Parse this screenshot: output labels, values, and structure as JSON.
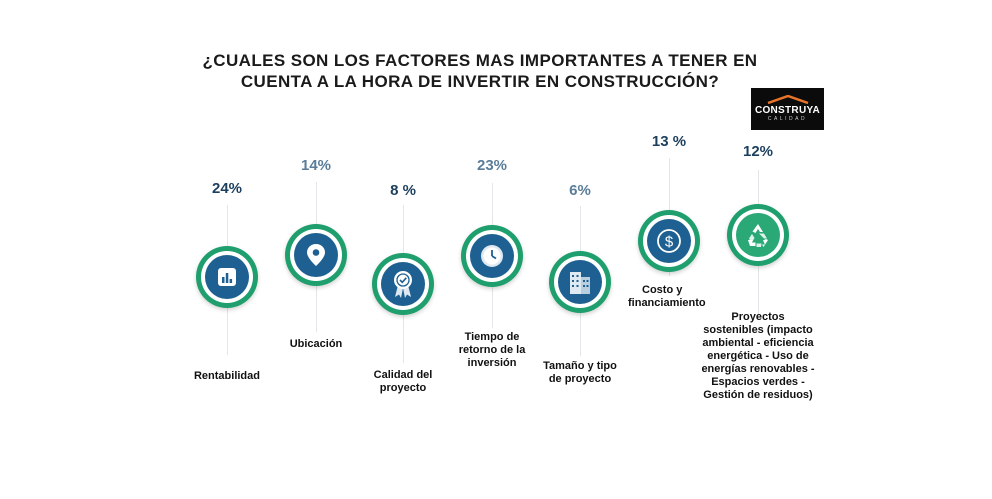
{
  "title_line1": "¿CUALES SON LOS FACTORES MAS IMPORTANTES A TENER EN",
  "title_line2": "CUENTA A LA HORA DE INVERTIR EN CONSTRUCCIÓN?",
  "logo": {
    "brand": "CONSTRUYA",
    "sub": "CALIDAD"
  },
  "colors": {
    "ring": "#1f9f6e",
    "core_blue": "#1e6091",
    "core_green": "#2aa876",
    "pct_dark": "#1d3f5e",
    "pct_light": "#5a7d99"
  },
  "chart_data": {
    "type": "table",
    "categories": [
      "Rentabilidad",
      "Ubicación",
      "Calidad del proyecto",
      "Tiempo de retorno de la inversión",
      "Tamaño y tipo de proyecto",
      "Costo y financiamiento",
      "Proyectos sostenibles (impacto ambiental - eficiencia energética - Uso de energías renovables - Espacios verdes - Gestión de residuos)"
    ],
    "values": [
      24,
      14,
      8,
      23,
      6,
      13,
      12
    ]
  },
  "items": [
    {
      "pct": "24%",
      "icon": "bar-chart-icon",
      "label_lines": [
        "Rentabilidad"
      ]
    },
    {
      "pct": "14%",
      "icon": "location-pin-icon",
      "label_lines": [
        "Ubicación"
      ]
    },
    {
      "pct": "8 %",
      "icon": "award-ribbon-icon",
      "label_lines": [
        "Calidad del",
        "proyecto"
      ]
    },
    {
      "pct": "23%",
      "icon": "clock-icon",
      "label_lines": [
        "Tiempo de",
        "retorno de la",
        "inversión"
      ]
    },
    {
      "pct": "6%",
      "icon": "buildings-icon",
      "label_lines": [
        "Tamaño y tipo",
        "de proyecto"
      ]
    },
    {
      "pct": "13 %",
      "icon": "dollar-coin-icon",
      "label_lines": [
        "Costo y",
        "financiamiento"
      ]
    },
    {
      "pct": "12%",
      "icon": "recycle-icon",
      "label_lines": [
        "Proyectos",
        "sostenibles (impacto",
        "ambiental - eficiencia",
        "energética - Uso de",
        "energías renovables -",
        "Espacios verdes -",
        "Gestión de residuos)"
      ]
    }
  ]
}
